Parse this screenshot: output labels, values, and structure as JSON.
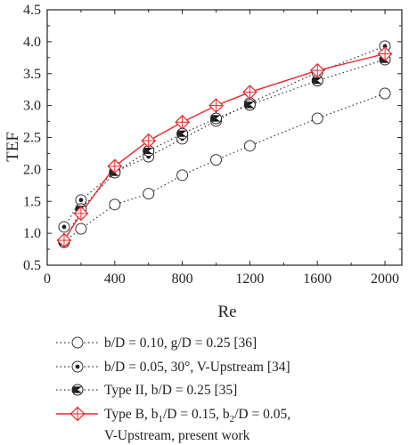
{
  "chart_data": {
    "type": "line",
    "title": "",
    "xlabel": "Re",
    "ylabel": "TEF",
    "xlim": [
      0,
      2100
    ],
    "ylim": [
      0.5,
      4.5
    ],
    "xticks": [
      0,
      400,
      800,
      1200,
      1600,
      2000
    ],
    "xtick_labels": [
      "0",
      "400",
      "800",
      "1200",
      "1600",
      "2000"
    ],
    "yticks": [
      0.5,
      1.0,
      1.5,
      2.0,
      2.5,
      3.0,
      3.5,
      4.0,
      4.5
    ],
    "ytick_labels": [
      "0.5",
      "1.0",
      "1.5",
      "2.0",
      "2.5",
      "3.0",
      "3.5",
      "4.0",
      "4.5"
    ],
    "grid": false,
    "legend_position": "below",
    "series": [
      {
        "name": "b/D = 0.10, g/D = 0.25 [36]",
        "marker": "open-circle",
        "line": "dotted",
        "color": "#333333",
        "x": [
          100,
          200,
          400,
          600,
          800,
          1000,
          1200,
          1600,
          2000
        ],
        "y": [
          0.87,
          1.07,
          1.45,
          1.62,
          1.91,
          2.15,
          2.37,
          2.8,
          3.19
        ]
      },
      {
        "name": "b/D = 0.05, 30°, V-Upstream [34]",
        "marker": "dot-circle",
        "line": "dotted",
        "color": "#333333",
        "x": [
          100,
          200,
          400,
          600,
          800,
          1000,
          1200,
          1600,
          2000
        ],
        "y": [
          1.1,
          1.52,
          1.96,
          2.2,
          2.48,
          2.76,
          3.04,
          3.52,
          3.93
        ]
      },
      {
        "name": "Type II, b/D = 0.25 [35]",
        "marker": "hourglass-circle",
        "line": "dotted",
        "color": "#333333",
        "x": [
          100,
          200,
          400,
          600,
          800,
          1000,
          1200,
          1600,
          2000
        ],
        "y": [
          0.86,
          1.38,
          1.95,
          2.29,
          2.56,
          2.8,
          3.01,
          3.39,
          3.72
        ]
      },
      {
        "name": "Type B, b1/D = 0.15, b2/D = 0.05, V-Upstream, present work",
        "marker": "diamond-plus",
        "line": "solid",
        "color": "#e8262b",
        "x": [
          100,
          200,
          400,
          600,
          800,
          1000,
          1200,
          1600,
          2000
        ],
        "y": [
          0.89,
          1.31,
          2.05,
          2.45,
          2.74,
          3.0,
          3.21,
          3.55,
          3.81
        ]
      }
    ]
  },
  "legend": {
    "entries": [
      {
        "text": "b/D = 0.10, g/D = 0.25 [36]"
      },
      {
        "text": "b/D = 0.05, 30°, V-Upstream [34]"
      },
      {
        "text": "Type II, b/D = 0.25 [35]"
      },
      {
        "text_line1": "Type B, b",
        "sub1": "1",
        "mid1": "/D = 0.15, b",
        "sub2": "2",
        "end1": "/D = 0.05,",
        "text_line2": "V-Upstream, present work"
      }
    ]
  }
}
